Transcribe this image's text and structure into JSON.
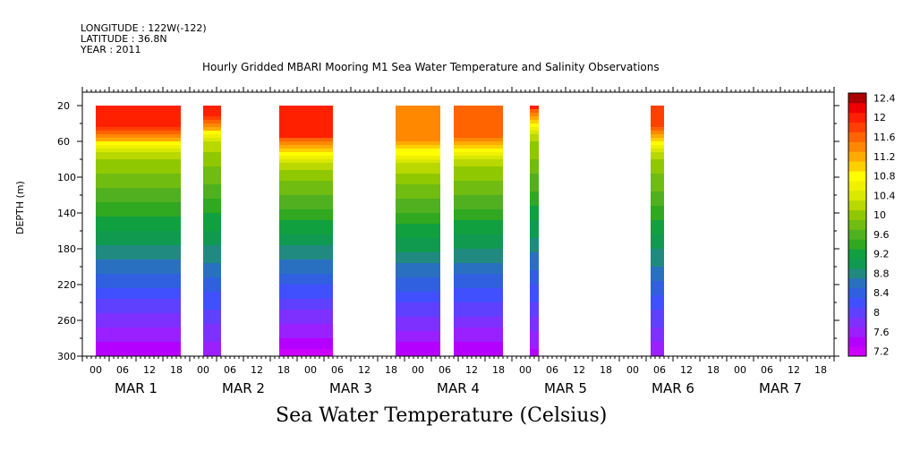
{
  "header": {
    "longitude": "LONGITUDE : 122W(-122)",
    "latitude": "LATITUDE : 36.8N",
    "year": "YEAR : 2011"
  },
  "chart_data": {
    "type": "heatmap",
    "title": "Hourly Gridded MBARI Mooring M1 Sea Water Temperature and Salinity Observations",
    "subtitle": "Sea Water Temperature (Celsius)",
    "ylabel": "DEPTH (m)",
    "xlabel": "",
    "y_axis": {
      "ticks": [
        20,
        60,
        100,
        140,
        180,
        220,
        260,
        300
      ],
      "range": [
        300,
        5
      ],
      "inverted": true
    },
    "x_axis": {
      "range_hours": [
        0,
        168
      ],
      "hour_ticks": [
        "00",
        "06",
        "12",
        "18",
        "00",
        "06",
        "12",
        "18",
        "00",
        "06",
        "12",
        "18",
        "00",
        "06",
        "12",
        "18",
        "00",
        "06",
        "12",
        "18",
        "00",
        "06",
        "12",
        "18",
        "00",
        "06",
        "12",
        "18"
      ],
      "day_labels": [
        "MAR 1",
        "MAR 2",
        "MAR 3",
        "MAR 4",
        "MAR 5",
        "MAR 6",
        "MAR 7"
      ]
    },
    "colorbar": {
      "labels": [
        "12.4",
        "12",
        "11.6",
        "11.2",
        "10.8",
        "10.4",
        "10",
        "9.6",
        "9.2",
        "8.8",
        "8.4",
        "8",
        "7.6",
        "7.2"
      ],
      "levels": [
        7.2,
        7.4,
        7.6,
        7.8,
        8.0,
        8.2,
        8.4,
        8.6,
        8.8,
        9.0,
        9.2,
        9.4,
        9.6,
        9.8,
        10.0,
        10.2,
        10.4,
        10.6,
        10.8,
        11.0,
        11.2,
        11.4,
        11.6,
        11.8,
        12.0,
        12.2,
        12.4,
        12.6
      ],
      "colors": [
        "#cc00ff",
        "#b400ff",
        "#9a20ff",
        "#7d30ff",
        "#6040ff",
        "#4050ff",
        "#3060e0",
        "#2a70c0",
        "#208a80",
        "#109a50",
        "#10a040",
        "#30a820",
        "#50b020",
        "#70bc10",
        "#90c800",
        "#b8d800",
        "#d8e800",
        "#f0f000",
        "#ffff00",
        "#ffd000",
        "#ffaa00",
        "#ff8800",
        "#ff6400",
        "#ff4000",
        "#ff2000",
        "#ee0000",
        "#aa0000"
      ]
    },
    "data_segments": [
      {
        "start_hour": 3,
        "end_hour": 22,
        "surface_temp": 12.0,
        "thermocline_depth": 62,
        "bottom_temp": 7.4
      },
      {
        "start_hour": 27,
        "end_hour": 31,
        "surface_temp": 12.0,
        "thermocline_depth": 50,
        "bottom_temp": 7.6
      },
      {
        "start_hour": 44,
        "end_hour": 56,
        "surface_temp": 12.0,
        "thermocline_depth": 72,
        "bottom_temp": 7.3
      },
      {
        "start_hour": 70,
        "end_hour": 80,
        "surface_temp": 11.5,
        "thermocline_depth": 75,
        "bottom_temp": 7.4
      },
      {
        "start_hour": 83,
        "end_hour": 94,
        "surface_temp": 11.7,
        "thermocline_depth": 70,
        "bottom_temp": 7.4
      },
      {
        "start_hour": 100,
        "end_hour": 102,
        "surface_temp": 12.0,
        "thermocline_depth": 40,
        "bottom_temp": 7.5
      },
      {
        "start_hour": 127,
        "end_hour": 130,
        "surface_temp": 11.8,
        "thermocline_depth": 60,
        "bottom_temp": 7.6
      }
    ]
  }
}
